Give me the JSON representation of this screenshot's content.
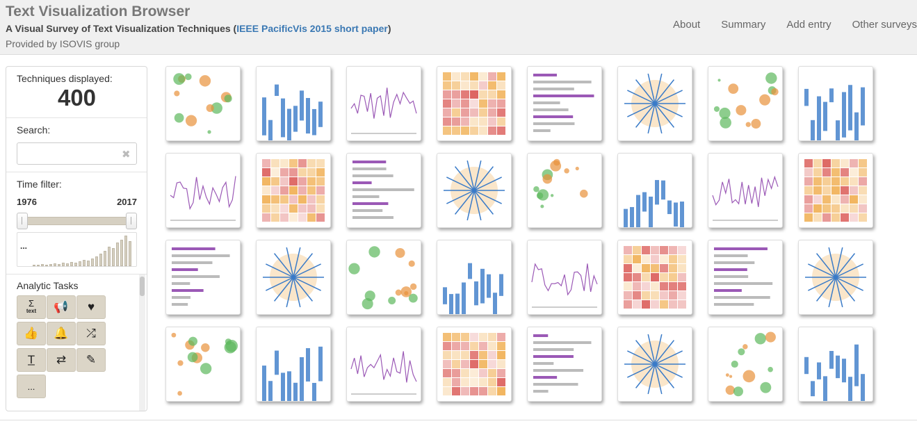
{
  "header": {
    "title": "Text Visualization Browser",
    "subtitle_prefix": "A Visual Survey of Text Visualization Techniques (",
    "subtitle_link": "IEEE PacificVis 2015 short paper",
    "subtitle_suffix": ")",
    "provided_by": "Provided by ISOVIS group",
    "nav": [
      "About",
      "Summary",
      "Add entry",
      "Other surveys"
    ]
  },
  "sidebar": {
    "techniques_label": "Techniques displayed:",
    "techniques_count": "400",
    "search_label": "Search:",
    "search_value": "",
    "time_filter_label": "Time filter:",
    "year_min": "1976",
    "year_max": "2017",
    "histogram_ellipsis": "...",
    "tasks_label": "Analytic Tasks",
    "task_buttons": [
      {
        "icon": "sigma-text-icon",
        "glyph": "Σ",
        "sub": "text"
      },
      {
        "icon": "megaphone-icon",
        "glyph": "📢"
      },
      {
        "icon": "heart-icon",
        "glyph": "♥"
      },
      {
        "icon": "thumbs-up-icon",
        "glyph": "👍"
      },
      {
        "icon": "bell-icon",
        "glyph": "🔔"
      },
      {
        "icon": "shuffle-icon",
        "glyph": "⤮"
      },
      {
        "icon": "text-format-icon",
        "glyph": "T̲"
      },
      {
        "icon": "retweet-icon",
        "glyph": "⇄"
      },
      {
        "icon": "edit-icon",
        "glyph": "✎"
      },
      {
        "icon": "more-icon",
        "glyph": "..."
      }
    ]
  },
  "gallery": {
    "thumbnail_count": 32,
    "accent_colors": [
      "#e8913a",
      "#3a7bc8",
      "#5cb85c",
      "#d9534f",
      "#9b59b6",
      "#f0ad4e"
    ]
  }
}
